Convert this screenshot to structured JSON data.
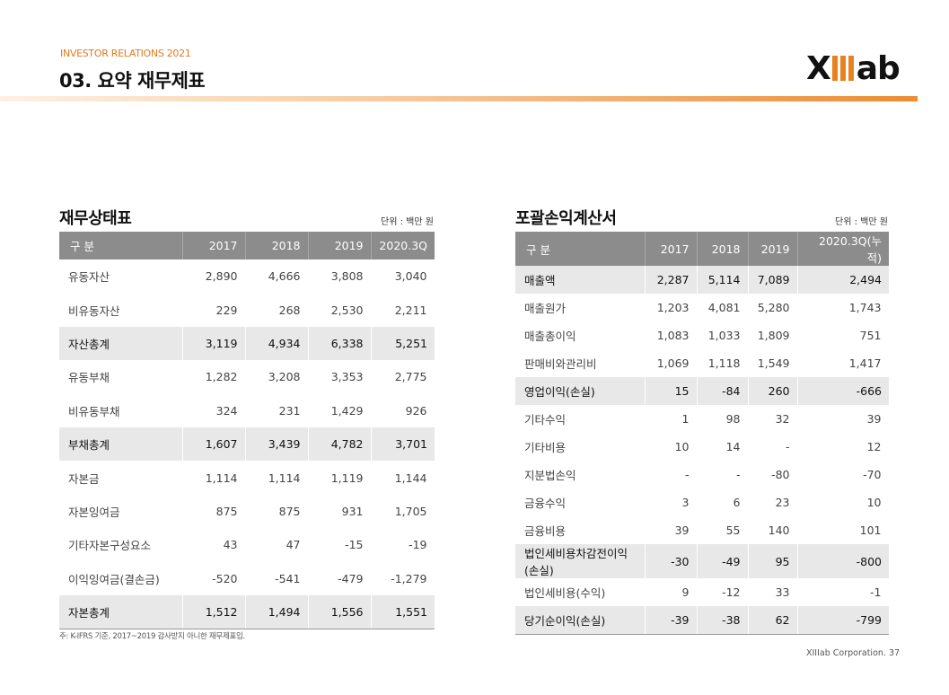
{
  "header": {
    "ir_label": "INVESTOR RELATIONS 2021",
    "title": "03. 요약 재무제표",
    "logo_text": "XIIIab",
    "accent_color": "#e8821e"
  },
  "balance_sheet": {
    "title": "재무상태표",
    "unit": "단위 : 백만 원",
    "columns": [
      "구 분",
      "2017",
      "2018",
      "2019",
      "2020.3Q"
    ],
    "rows": [
      {
        "label": "유동자산",
        "values": [
          "2,890",
          "4,666",
          "3,808",
          "3,040"
        ],
        "total": false
      },
      {
        "label": "비유동자산",
        "values": [
          "229",
          "268",
          "2,530",
          "2,211"
        ],
        "total": false
      },
      {
        "label": "자산총계",
        "values": [
          "3,119",
          "4,934",
          "6,338",
          "5,251"
        ],
        "total": true
      },
      {
        "label": "유동부채",
        "values": [
          "1,282",
          "3,208",
          "3,353",
          "2,775"
        ],
        "total": false
      },
      {
        "label": "비유동부채",
        "values": [
          "324",
          "231",
          "1,429",
          "926"
        ],
        "total": false
      },
      {
        "label": "부채총계",
        "values": [
          "1,607",
          "3,439",
          "4,782",
          "3,701"
        ],
        "total": true
      },
      {
        "label": "자본금",
        "values": [
          "1,114",
          "1,114",
          "1,119",
          "1,144"
        ],
        "total": false
      },
      {
        "label": "자본잉여금",
        "values": [
          "875",
          "875",
          "931",
          "1,705"
        ],
        "total": false
      },
      {
        "label": "기타자본구성요소",
        "values": [
          "43",
          "47",
          "-15",
          "-19"
        ],
        "total": false
      },
      {
        "label": "이익잉여금(결손금)",
        "values": [
          "-520",
          "-541",
          "-479",
          "-1,279"
        ],
        "total": false
      },
      {
        "label": "자본총계",
        "values": [
          "1,512",
          "1,494",
          "1,556",
          "1,551"
        ],
        "total": true
      }
    ],
    "footnote": "주: K-IFRS 기준, 2017~2019 감사받지 아니한 재무제표임."
  },
  "income_statement": {
    "title": "포괄손익계산서",
    "unit": "단위 : 백만 원",
    "columns": [
      "구 분",
      "2017",
      "2018",
      "2019",
      "2020.3Q(누적)"
    ],
    "rows": [
      {
        "label": "매출액",
        "values": [
          "2,287",
          "5,114",
          "7,089",
          "2,494"
        ],
        "total": true
      },
      {
        "label": "매출원가",
        "values": [
          "1,203",
          "4,081",
          "5,280",
          "1,743"
        ],
        "total": false
      },
      {
        "label": "매출총이익",
        "values": [
          "1,083",
          "1,033",
          "1,809",
          "751"
        ],
        "total": false
      },
      {
        "label": "판매비와관리비",
        "values": [
          "1,069",
          "1,118",
          "1,549",
          "1,417"
        ],
        "total": false
      },
      {
        "label": "영업이익(손실)",
        "values": [
          "15",
          "-84",
          "260",
          "-666"
        ],
        "total": true
      },
      {
        "label": "기타수익",
        "values": [
          "1",
          "98",
          "32",
          "39"
        ],
        "total": false
      },
      {
        "label": "기타비용",
        "values": [
          "10",
          "14",
          "-",
          "12"
        ],
        "total": false
      },
      {
        "label": "지분법손익",
        "values": [
          "-",
          "-",
          "-80",
          "-70"
        ],
        "total": false
      },
      {
        "label": "금융수익",
        "values": [
          "3",
          "6",
          "23",
          "10"
        ],
        "total": false
      },
      {
        "label": "금융비용",
        "values": [
          "39",
          "55",
          "140",
          "101"
        ],
        "total": false
      },
      {
        "label": "법인세비용차감전이익(손실)",
        "values": [
          "-30",
          "-49",
          "95",
          "-800"
        ],
        "total": true
      },
      {
        "label": "법인세비용(수익)",
        "values": [
          "9",
          "-12",
          "33",
          "-1"
        ],
        "total": false
      },
      {
        "label": "당기순이익(손실)",
        "values": [
          "-39",
          "-38",
          "62",
          "-799"
        ],
        "total": true
      }
    ]
  },
  "footer": {
    "company": "XIIIab Corporation.",
    "page": "37"
  }
}
